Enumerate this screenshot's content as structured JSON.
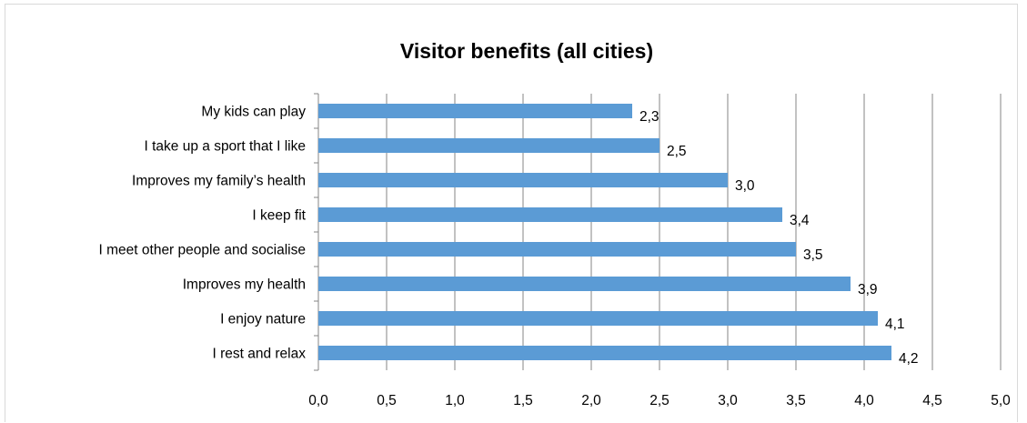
{
  "chart_data": {
    "type": "bar",
    "orientation": "horizontal",
    "title": "Visitor benefits (all cities)",
    "categories": [
      "My kids can play",
      "I take up a sport that I like",
      "Improves my family’s health",
      "I keep fit",
      "I meet other people and socialise",
      "Improves my health",
      "I enjoy nature",
      "I rest and relax"
    ],
    "values": [
      2.3,
      2.5,
      3.0,
      3.4,
      3.5,
      3.9,
      4.1,
      4.2
    ],
    "value_labels": [
      "2,3",
      "2,5",
      "3,0",
      "3,4",
      "3,5",
      "3,9",
      "4,1",
      "4,2"
    ],
    "xlim": [
      0,
      5
    ],
    "x_ticks": [
      "0,0",
      "0,5",
      "1,0",
      "1,5",
      "2,0",
      "2,5",
      "3,0",
      "3,5",
      "4,0",
      "4,5",
      "5,0"
    ],
    "grid": "vertical",
    "legend": "none",
    "colors": {
      "bar": "#5b9bd5",
      "grid": "#868686",
      "text": "#000000"
    }
  }
}
